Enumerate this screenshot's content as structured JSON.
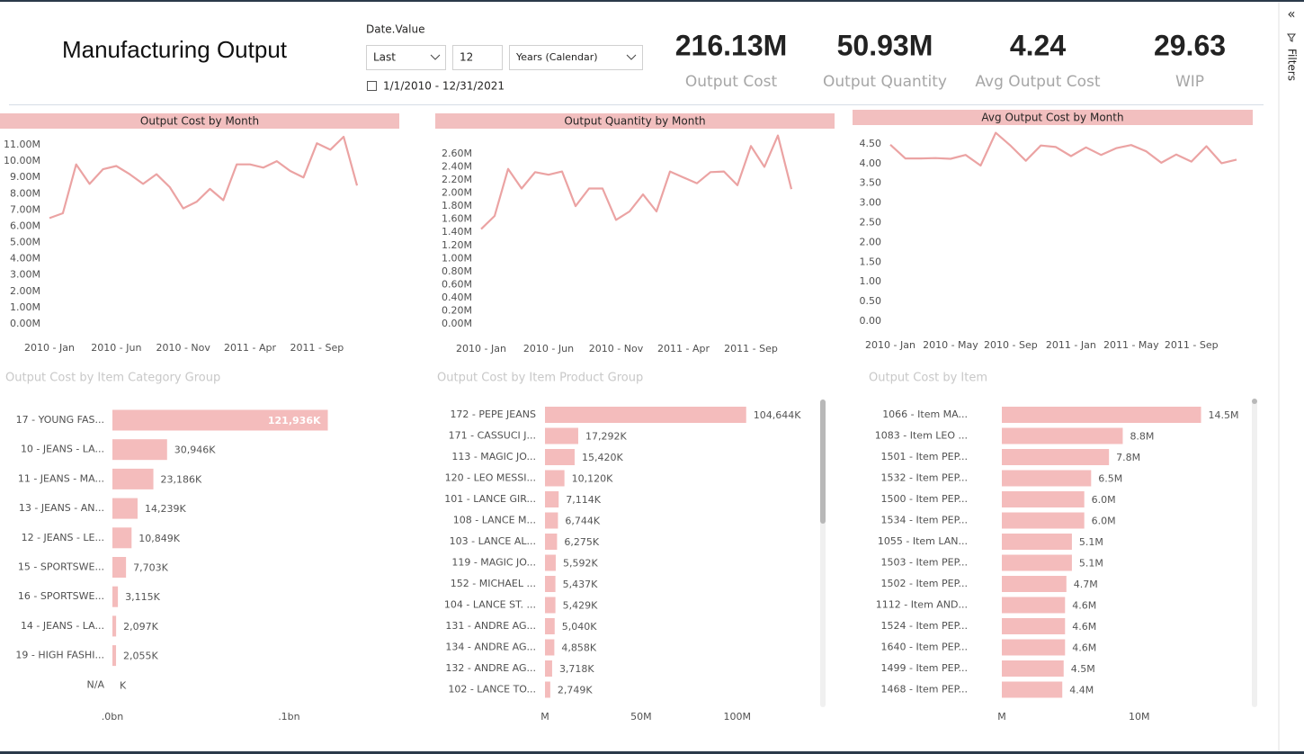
{
  "header": {
    "title": "Manufacturing Output"
  },
  "slicer": {
    "label": "Date.Value",
    "mode": "Last",
    "count": "12",
    "unit": "Years (Calendar)",
    "range": "1/1/2010 - 12/31/2021"
  },
  "kpis": [
    {
      "value": "216.13M",
      "label": "Output Cost"
    },
    {
      "value": "50.93M",
      "label": "Output Quantity"
    },
    {
      "value": "4.24",
      "label": "Avg Output Cost"
    },
    {
      "value": "29.63",
      "label": "WIP"
    }
  ],
  "filters_pane": {
    "label": "Filters"
  },
  "chart_data": [
    {
      "type": "line",
      "title": "Output Cost by Month",
      "color": "#eba3a3",
      "grid": false,
      "categories": [
        "2010 - Jan",
        null,
        null,
        null,
        null,
        "2010 - Jun",
        null,
        null,
        null,
        null,
        "2010 - Nov",
        null,
        null,
        null,
        null,
        "2011 - Apr",
        null,
        null,
        null,
        null,
        "2011 - Sep",
        null,
        null,
        null
      ],
      "values": [
        6.5,
        6.8,
        9.8,
        8.6,
        9.5,
        9.7,
        9.2,
        8.6,
        9.2,
        8.4,
        7.1,
        7.5,
        8.3,
        7.6,
        9.8,
        9.8,
        9.6,
        10.0,
        9.4,
        9.0,
        11.1,
        10.7,
        11.5,
        8.5
      ],
      "ylim": [
        0,
        11.6
      ],
      "yticks": [
        {
          "value": 0,
          "label": "0.00M"
        },
        {
          "value": 1,
          "label": "1.00M"
        },
        {
          "value": 2,
          "label": "2.00M"
        },
        {
          "value": 3,
          "label": "3.00M"
        },
        {
          "value": 4,
          "label": "4.00M"
        },
        {
          "value": 5,
          "label": "5.00M"
        },
        {
          "value": 6,
          "label": "6.00M"
        },
        {
          "value": 7,
          "label": "7.00M"
        },
        {
          "value": 8,
          "label": "8.00M"
        },
        {
          "value": 9,
          "label": "9.00M"
        },
        {
          "value": 10,
          "label": "10.00M"
        },
        {
          "value": 11,
          "label": "11.00M"
        }
      ]
    },
    {
      "type": "line",
      "title": "Output Quantity by Month",
      "color": "#eba3a3",
      "grid": false,
      "categories": [
        "2010 - Jan",
        null,
        null,
        null,
        null,
        "2010 - Jun",
        null,
        null,
        null,
        null,
        "2010 - Nov",
        null,
        null,
        null,
        null,
        "2011 - Apr",
        null,
        null,
        null,
        null,
        "2011 - Sep",
        null,
        null,
        null
      ],
      "values": [
        1.45,
        1.65,
        2.37,
        2.07,
        2.32,
        2.28,
        2.33,
        1.8,
        2.07,
        2.07,
        1.59,
        1.72,
        1.98,
        1.72,
        2.33,
        2.24,
        2.15,
        2.32,
        2.33,
        2.12,
        2.72,
        2.4,
        2.88,
        2.06
      ],
      "ylim": [
        0,
        2.9
      ],
      "yticks": [
        {
          "value": 0,
          "label": "0.00M"
        },
        {
          "value": 0.2,
          "label": "0.20M"
        },
        {
          "value": 0.4,
          "label": "0.40M"
        },
        {
          "value": 0.6,
          "label": "0.60M"
        },
        {
          "value": 0.8,
          "label": "0.80M"
        },
        {
          "value": 1.0,
          "label": "1.00M"
        },
        {
          "value": 1.2,
          "label": "1.20M"
        },
        {
          "value": 1.4,
          "label": "1.40M"
        },
        {
          "value": 1.6,
          "label": "1.60M"
        },
        {
          "value": 1.8,
          "label": "1.80M"
        },
        {
          "value": 2.0,
          "label": "2.00M"
        },
        {
          "value": 2.2,
          "label": "2.20M"
        },
        {
          "value": 2.4,
          "label": "2.40M"
        },
        {
          "value": 2.6,
          "label": "2.60M"
        }
      ]
    },
    {
      "type": "line",
      "title": "Avg Output Cost by Month",
      "color": "#eba3a3",
      "grid": false,
      "categories": [
        "2010 - Jan",
        null,
        null,
        null,
        "2010 - May",
        null,
        null,
        null,
        "2010 - Sep",
        null,
        null,
        null,
        "2011 - Jan",
        null,
        null,
        null,
        "2011 - May",
        null,
        null,
        null,
        "2011 - Sep",
        null,
        null,
        null
      ],
      "values": [
        4.48,
        4.13,
        4.13,
        4.14,
        4.12,
        4.22,
        3.95,
        4.78,
        4.45,
        4.07,
        4.46,
        4.42,
        4.19,
        4.41,
        4.22,
        4.39,
        4.47,
        4.31,
        4.02,
        4.23,
        4.05,
        4.44,
        4.01,
        4.1
      ],
      "ylim": [
        0,
        4.8
      ],
      "yticks": [
        {
          "value": 0,
          "label": "0.00"
        },
        {
          "value": 0.5,
          "label": "0.50"
        },
        {
          "value": 1.0,
          "label": "1.00"
        },
        {
          "value": 1.5,
          "label": "1.50"
        },
        {
          "value": 2.0,
          "label": "2.00"
        },
        {
          "value": 2.5,
          "label": "2.50"
        },
        {
          "value": 3.0,
          "label": "3.00"
        },
        {
          "value": 3.5,
          "label": "3.50"
        },
        {
          "value": 4.0,
          "label": "4.00"
        },
        {
          "value": 4.5,
          "label": "4.50"
        }
      ]
    },
    {
      "type": "bar",
      "orientation": "horizontal",
      "title": "Output Cost by Item Category Group",
      "color": "#f4bcbc",
      "categories": [
        "17 - YOUNG FAS...",
        "10 - JEANS - LA...",
        "11 - JEANS - MA...",
        "13 - JEANS - AN...",
        "12 - JEANS - LE...",
        "15 - SPORTSWE...",
        "16 - SPORTSWE...",
        "14 - JEANS - LA...",
        "19 - HIGH FASHI...",
        "N/A"
      ],
      "values": [
        0.121936,
        0.030946,
        0.023186,
        0.014239,
        0.010849,
        0.007703,
        0.003115,
        0.002097,
        0.002055,
        0
      ],
      "value_labels": [
        "121,936K",
        "30,946K",
        "23,186K",
        "14,239K",
        "10,849K",
        "7,703K",
        "3,115K",
        "2,097K",
        "2,055K",
        "K"
      ],
      "xlim": [
        0,
        0.14
      ],
      "xticks": [
        {
          "value": 0,
          "label": ".0bn"
        },
        {
          "value": 0.1,
          "label": ".1bn"
        }
      ]
    },
    {
      "type": "bar",
      "orientation": "horizontal",
      "title": "Output Cost by Item Product Group",
      "color": "#f4bcbc",
      "categories": [
        "172 - PEPE JEANS",
        "171 - CASSUCI J...",
        "113 - MAGIC JO...",
        "120 - LEO MESSI...",
        "101 - LANCE GIR...",
        "108 - LANCE M...",
        "103 - LANCE AL...",
        "119 - MAGIC JO...",
        "152 - MICHAEL ...",
        "104 - LANCE ST. ...",
        "131 - ANDRE AG...",
        "134 - ANDRE AG...",
        "132 - ANDRE AG...",
        "102 - LANCE TO..."
      ],
      "values": [
        104.644,
        17.292,
        15.42,
        10.12,
        7.114,
        6.744,
        6.275,
        5.592,
        5.437,
        5.429,
        5.04,
        4.858,
        3.718,
        2.749
      ],
      "value_labels": [
        "104,644K",
        "17,292K",
        "15,420K",
        "10,120K",
        "7,114K",
        "6,744K",
        "6,275K",
        "5,592K",
        "5,437K",
        "5,429K",
        "5,040K",
        "4,858K",
        "3,718K",
        "2,749K"
      ],
      "xlim": [
        0,
        145
      ],
      "xticks": [
        {
          "value": 0,
          "label": "M"
        },
        {
          "value": 50,
          "label": "50M"
        },
        {
          "value": 100,
          "label": "100M"
        }
      ]
    },
    {
      "type": "bar",
      "orientation": "horizontal",
      "title": "Output Cost by Item",
      "color": "#f4bcbc",
      "categories": [
        "1066 - Item MA...",
        "1083 - Item LEO ...",
        "1501 - Item PEP...",
        "1532 - Item PEP...",
        "1500 - Item PEP...",
        "1534 - Item PEP...",
        "1055 - Item LAN...",
        "1503 - Item PEP...",
        "1502 - Item PEP...",
        "1112 - Item AND...",
        "1524 - Item PEP...",
        "1640 - Item PEP...",
        "1499 - Item PEP...",
        "1468 - Item PEP..."
      ],
      "values": [
        14.5,
        8.8,
        7.8,
        6.5,
        6.0,
        6.0,
        5.1,
        5.1,
        4.7,
        4.6,
        4.6,
        4.6,
        4.5,
        4.4
      ],
      "value_labels": [
        "14.5M",
        "8.8M",
        "7.8M",
        "6.5M",
        "6.0M",
        "6.0M",
        "5.1M",
        "5.1M",
        "4.7M",
        "4.6M",
        "4.6M",
        "4.6M",
        "4.5M",
        "4.4M"
      ],
      "xlim": [
        0,
        18
      ],
      "xticks": [
        {
          "value": 0,
          "label": "M"
        },
        {
          "value": 10,
          "label": "10M"
        }
      ]
    }
  ]
}
